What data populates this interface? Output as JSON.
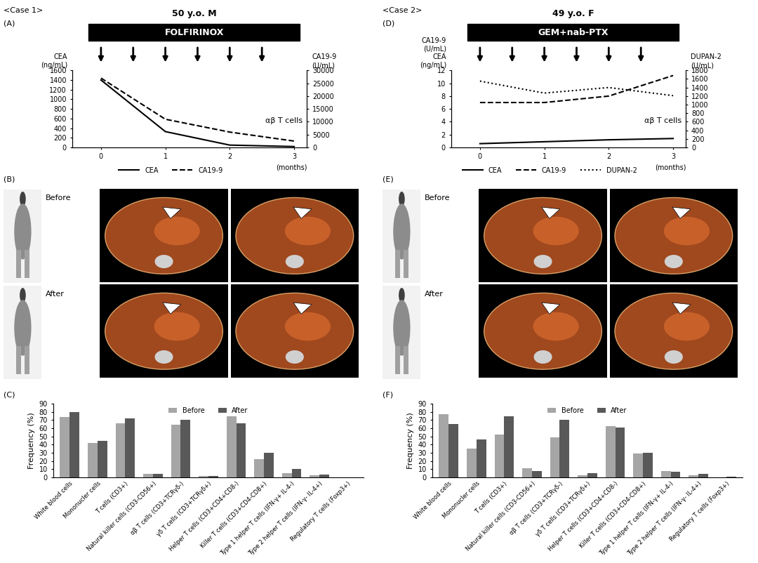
{
  "chart_data": [
    {
      "type": "line",
      "case": "<Case 1>",
      "panel": "(A)",
      "title": "50 y.o. M",
      "treatment": "FOLFIRINOX",
      "dose_times": [
        0,
        0.5,
        1,
        1.5,
        2,
        2.5
      ],
      "annotation": "αβ T cells",
      "y_label": "CEA\n(ng/mL)",
      "y2_label": "CA19-9\n(U/mL)",
      "x_label": "(months)",
      "x": [
        0,
        1,
        2,
        3
      ],
      "xlim": [
        -0.45,
        3.2
      ],
      "xticks": [
        0,
        1,
        2,
        3
      ],
      "ylim": [
        0,
        1600
      ],
      "yticks": [
        0,
        200,
        400,
        600,
        800,
        1000,
        1200,
        1400,
        1600
      ],
      "y2lim": [
        0,
        30000
      ],
      "y2ticks": [
        0,
        5000,
        10000,
        15000,
        20000,
        25000,
        30000
      ],
      "legend": "upper center",
      "series": [
        {
          "name": "CEA",
          "color": "#000000",
          "line_style": "solid",
          "values": [
            1400,
            330,
            50,
            20
          ]
        },
        {
          "name": "CA19-9",
          "color": "#000000",
          "line_style": "dashed",
          "axis": "y2",
          "values": [
            27000,
            11000,
            6000,
            2500
          ]
        }
      ]
    },
    {
      "type": "line",
      "case": "<Case 2>",
      "panel": "(D)",
      "title": "49 y.o. F",
      "treatment": "GEM+nab-PTX",
      "dose_times": [
        0,
        0.5,
        1,
        1.5,
        2,
        2.5
      ],
      "annotation": "αβ T cells",
      "y_label": "CA19-9\n(U/mL)\nCEA\n(ng/mL)",
      "y2_label": "DUPAN-2\n(U/mL)",
      "x_label": "(months)",
      "x": [
        0,
        1,
        2,
        3
      ],
      "xlim": [
        -0.45,
        3.2
      ],
      "xticks": [
        0,
        1,
        2,
        3
      ],
      "ylim": [
        0,
        12
      ],
      "yticks": [
        0,
        2,
        4,
        6,
        8,
        10,
        12
      ],
      "y2lim": [
        0,
        1800
      ],
      "y2ticks": [
        0,
        200,
        400,
        600,
        800,
        1000,
        1200,
        1400,
        1600,
        1800
      ],
      "legend": "upper center",
      "series": [
        {
          "name": "CEA",
          "color": "#000000",
          "line_style": "solid",
          "values": [
            0.6,
            0.9,
            1.2,
            1.4
          ]
        },
        {
          "name": "CA19-9",
          "color": "#000000",
          "line_style": "dashed",
          "values": [
            7,
            7,
            8,
            11.2
          ]
        },
        {
          "name": "DUPAN-2",
          "color": "#000000",
          "line_style": "dotted",
          "axis": "y2",
          "values": [
            1550,
            1270,
            1400,
            1210
          ]
        }
      ]
    },
    {
      "type": "bar",
      "panel": "(C)",
      "y_label": "Frequency (%)",
      "categories": [
        "White blood cells",
        "Mononucler cells",
        "T cells (CD3+)",
        "Natural killer cells (CD3-CD56+)",
        "αβ T cells (CD3+TCRγδ-)",
        "γδ T cells (CD3+TCRγδ+)",
        "Helper T cells (CD3+CD4+CD8-)",
        "Killer T cells (CD3+CD4-CD8+)",
        "Type 1 helper T cells (IFN-γ+ IL-4-)",
        "Type 2 helper T cells (IFN-γ- IL-4+)",
        "Regulatory T cells (Foxp3+)"
      ],
      "ylim": [
        0,
        90
      ],
      "yticks": [
        0,
        10,
        20,
        30,
        40,
        50,
        60,
        70,
        80,
        90
      ],
      "legend": "upper center",
      "series": [
        {
          "name": "Before",
          "color": "#a6a6a6",
          "values": [
            74,
            42,
            66,
            4,
            64,
            1.5,
            75,
            22,
            5.5,
            3,
            0.2
          ]
        },
        {
          "name": "After",
          "color": "#595959",
          "values": [
            80,
            45,
            72,
            4,
            70,
            2,
            66,
            30,
            10.5,
            3.5,
            0.3
          ]
        }
      ]
    },
    {
      "type": "bar",
      "panel": "(F)",
      "y_label": "Frequency (%)",
      "categories": [
        "White blood cells",
        "Mononucler cells",
        "T cells (CD3+)",
        "Natural killer cells (CD3-CD56+)",
        "αβ T cells (CD3+TCRγδ-)",
        "γδ T cells (CD3+TCRγδ+)",
        "Helper T cells (CD3+CD4+CD8-)",
        "Killer T cells (CD3+CD4-CD8+)",
        "Type 1 helper T cells (IFN-γ+ IL-4-)",
        "Type 2 helper T cells (IFN-γ- IL-4+)",
        "Regulatory T cells (Foxp3+)"
      ],
      "ylim": [
        0,
        90
      ],
      "yticks": [
        0,
        10,
        20,
        30,
        40,
        50,
        60,
        70,
        80,
        90
      ],
      "legend": "upper center",
      "series": [
        {
          "name": "Before",
          "color": "#a6a6a6",
          "values": [
            77,
            35,
            52,
            11,
            49,
            2.5,
            63,
            29,
            8,
            3,
            0.3
          ]
        },
        {
          "name": "After",
          "color": "#595959",
          "values": [
            65,
            46,
            75,
            8,
            70,
            5,
            61,
            30,
            7,
            4,
            0.6
          ]
        }
      ]
    }
  ],
  "images": [
    {
      "panel": "(B)",
      "labels": [
        "Before",
        "After"
      ]
    },
    {
      "panel": "(E)",
      "labels": [
        "Before",
        "After"
      ]
    }
  ]
}
